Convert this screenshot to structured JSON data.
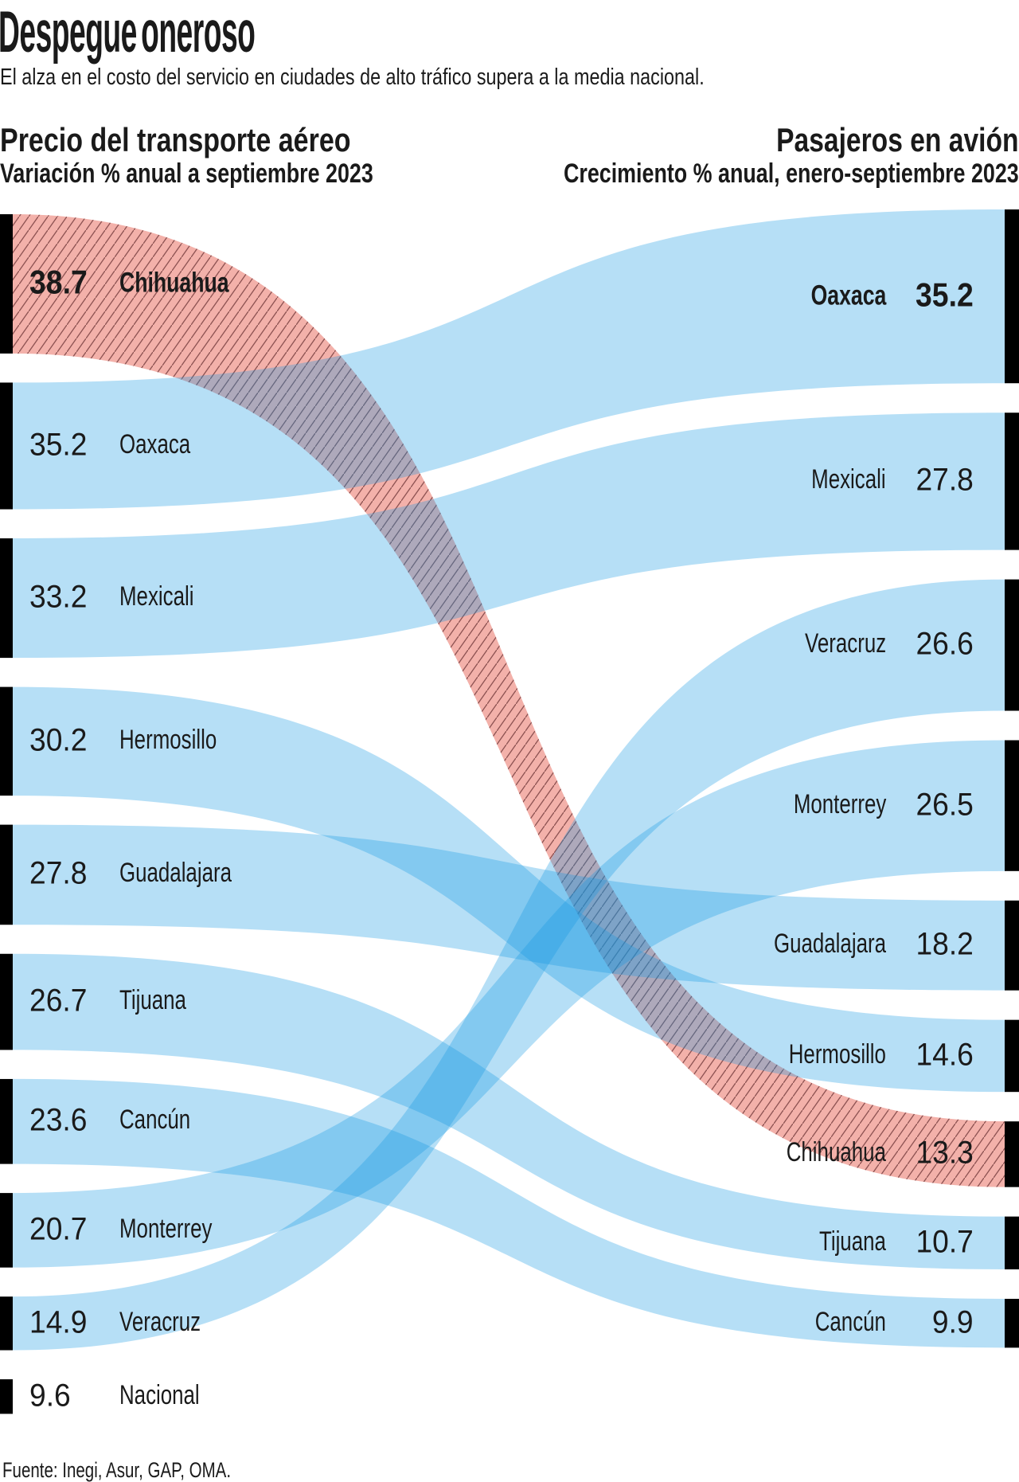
{
  "title": "Despegue oneroso",
  "subtitle": "El alza en el costo del servicio en ciudades de alto tráfico supera a la media nacional.",
  "source": "Fuente: Inegi, Asur, GAP, OMA.",
  "columns": {
    "left": {
      "title": "Precio del transporte aéreo",
      "subtitle": "Variación % anual a septiembre 2023"
    },
    "right": {
      "title": "Pasajeros en avión",
      "subtitle": "Crecimiento % anual, enero-septiembre 2023"
    }
  },
  "colors": {
    "ribbon_blue": "rgba(20,152,225,0.31)",
    "ribbon_pink": "#f3b1aa",
    "hatch_line": "#8d5252",
    "bar": "#000000",
    "text": "#1a1a1a"
  },
  "chart_data": {
    "type": "sankey",
    "unit": "% anual",
    "left_nodes": [
      {
        "label": "Chihuahua",
        "value": 38.7,
        "bold": true,
        "pink": true
      },
      {
        "label": "Oaxaca",
        "value": 35.2
      },
      {
        "label": "Mexicali",
        "value": 33.2
      },
      {
        "label": "Hermosillo",
        "value": 30.2
      },
      {
        "label": "Guadalajara",
        "value": 27.8
      },
      {
        "label": "Tijuana",
        "value": 26.7
      },
      {
        "label": "Cancún",
        "value": 23.6
      },
      {
        "label": "Monterrey",
        "value": 20.7
      },
      {
        "label": "Veracruz",
        "value": 14.9
      },
      {
        "label": "Nacional",
        "value": 9.6
      }
    ],
    "right_nodes": [
      {
        "label": "Oaxaca",
        "value": 35.2,
        "bold": true
      },
      {
        "label": "Mexicali",
        "value": 27.8
      },
      {
        "label": "Veracruz",
        "value": 26.6
      },
      {
        "label": "Monterrey",
        "value": 26.5
      },
      {
        "label": "Guadalajara",
        "value": 18.2
      },
      {
        "label": "Hermosillo",
        "value": 14.6
      },
      {
        "label": "Chihuahua",
        "value": 13.3,
        "pink": true
      },
      {
        "label": "Tijuana",
        "value": 10.7
      },
      {
        "label": "Cancún",
        "value": 9.9
      }
    ],
    "links": [
      [
        "Chihuahua",
        "Chihuahua"
      ],
      [
        "Oaxaca",
        "Oaxaca"
      ],
      [
        "Mexicali",
        "Mexicali"
      ],
      [
        "Hermosillo",
        "Hermosillo"
      ],
      [
        "Guadalajara",
        "Guadalajara"
      ],
      [
        "Tijuana",
        "Tijuana"
      ],
      [
        "Cancún",
        "Cancún"
      ],
      [
        "Monterrey",
        "Monterrey"
      ],
      [
        "Veracruz",
        "Veracruz"
      ]
    ]
  }
}
